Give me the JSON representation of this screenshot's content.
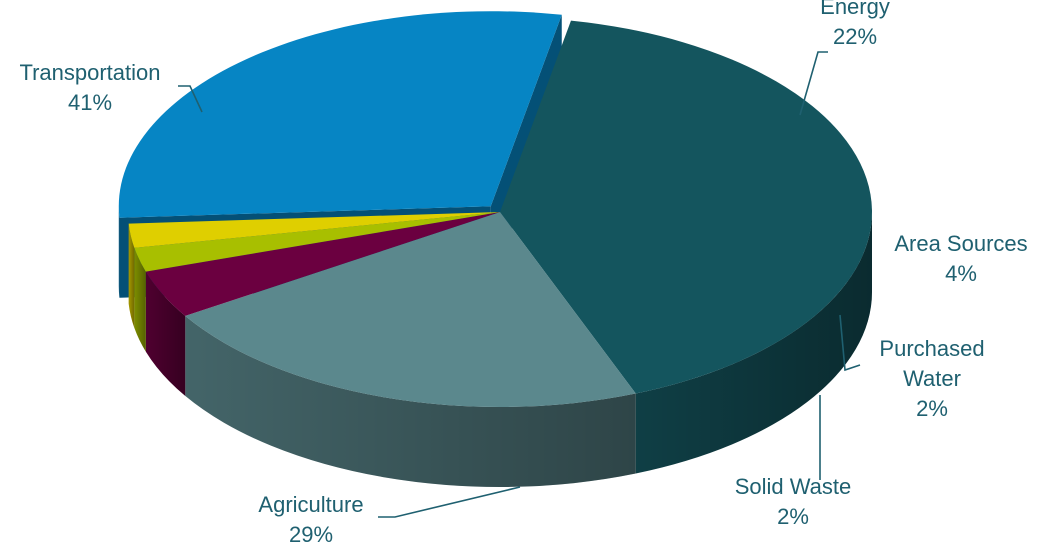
{
  "chart_data": {
    "type": "pie",
    "title": "",
    "slices": [
      {
        "label": "Transportation",
        "percent_label": "41%",
        "value": 41,
        "color": "#14555e"
      },
      {
        "label": "Energy",
        "percent_label": "22%",
        "value": 22,
        "color": "#5b888d"
      },
      {
        "label": "Area Sources",
        "percent_label": "4%",
        "value": 4,
        "color": "#6b0040"
      },
      {
        "label": "Purchased Water",
        "percent_label": "2%",
        "value": 2,
        "color": "#a8bf00"
      },
      {
        "label": "Solid Waste",
        "percent_label": "2%",
        "value": 2,
        "color": "#dfcf00"
      },
      {
        "label": "Agriculture",
        "percent_label": "29%",
        "value": 29,
        "color": "#0685c4"
      }
    ],
    "label_color": "#1f6070",
    "style": "3d-exploded-tilted"
  }
}
